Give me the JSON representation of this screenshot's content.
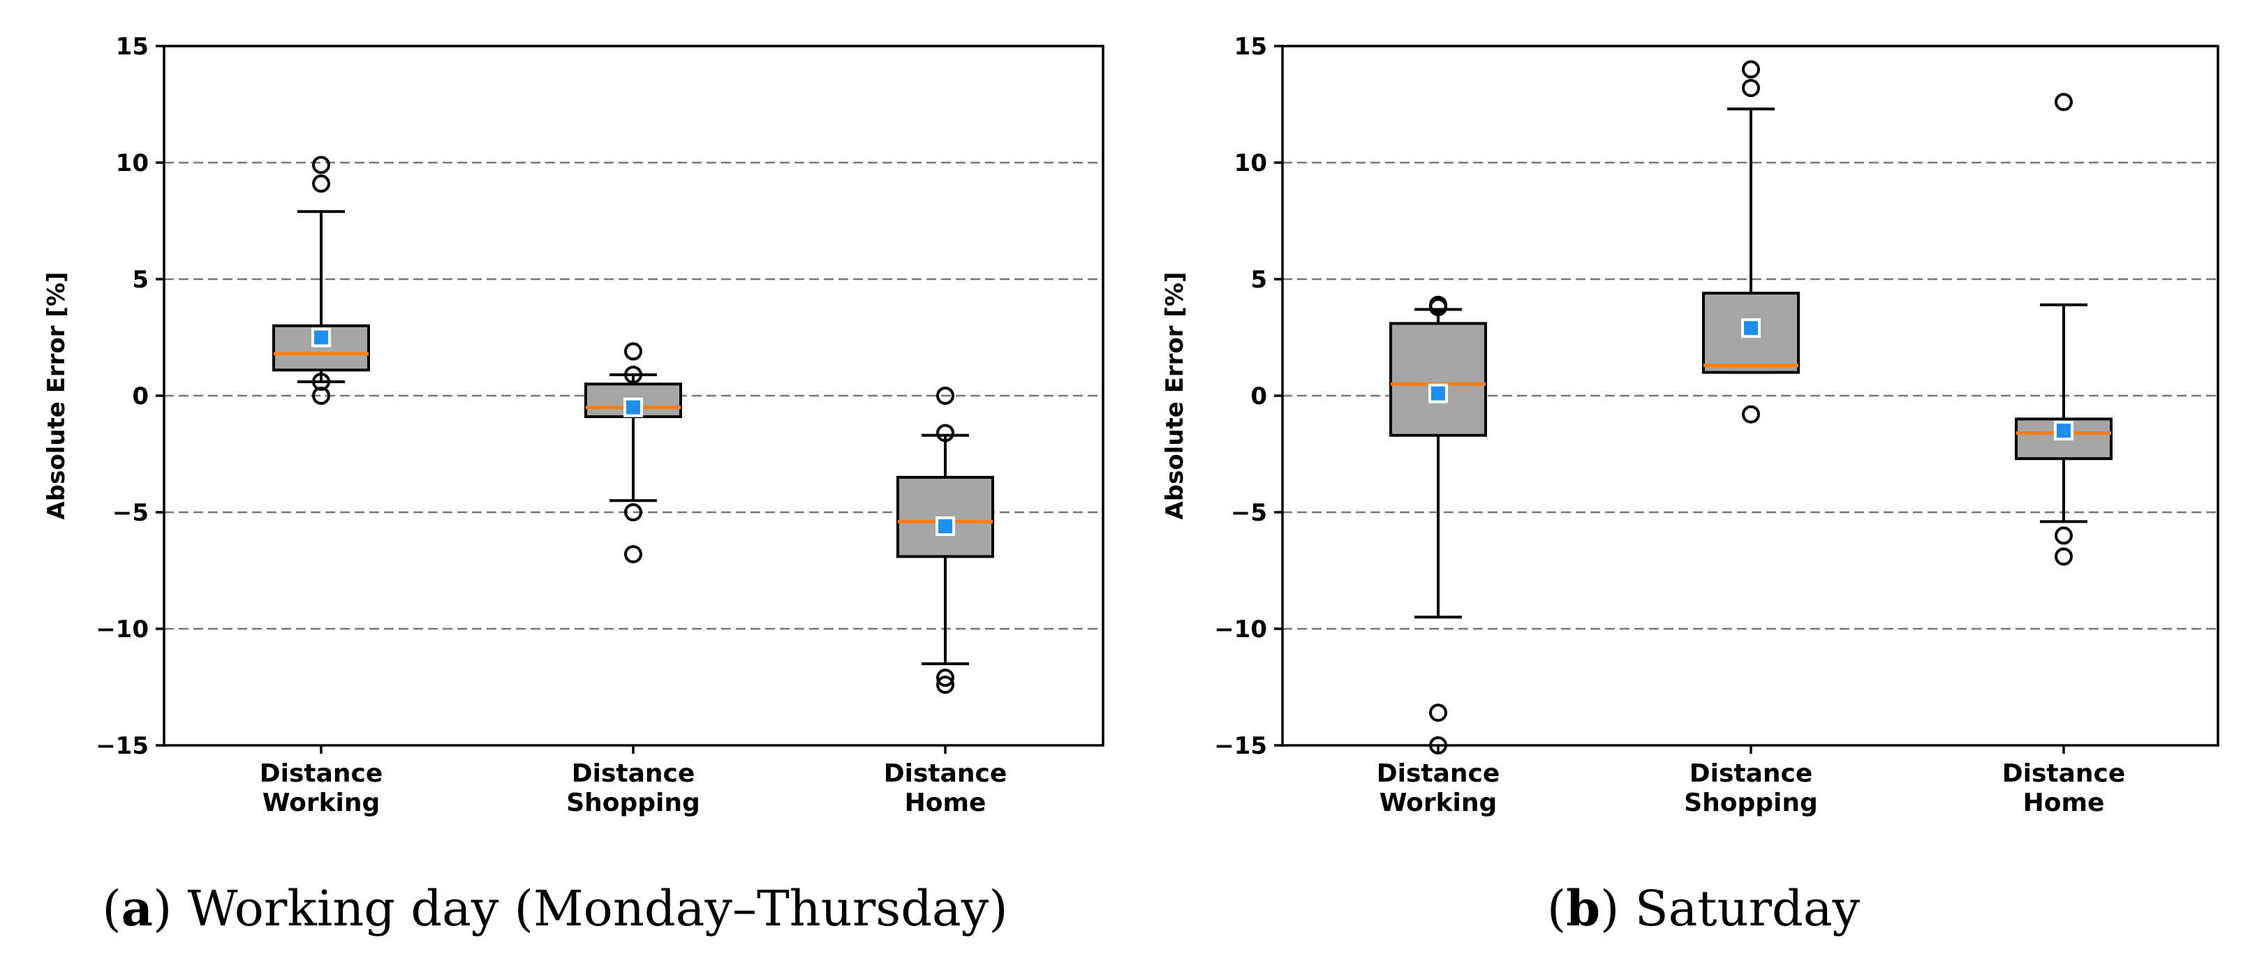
{
  "chart_data": [
    {
      "type": "box",
      "panel": "a",
      "caption_letter": "a",
      "caption_text": "Working day (Monday–Thursday)",
      "ylabel": "Absolute Error [%]",
      "ylim": [
        -15,
        15
      ],
      "yticks": [
        -15,
        -10,
        -5,
        0,
        5,
        10,
        15
      ],
      "ytick_labels": [
        "−15",
        "−10",
        "−5",
        "0",
        "5",
        "10",
        "15"
      ],
      "grid": "horizontal-dashed",
      "categories": [
        {
          "line1": "Distance",
          "line2": "Working"
        },
        {
          "line1": "Distance",
          "line2": "Shopping"
        },
        {
          "line1": "Distance",
          "line2": "Home"
        }
      ],
      "boxes": [
        {
          "whislo": 0.6,
          "q1": 1.1,
          "med": 1.8,
          "q3": 3.0,
          "whishi": 7.9,
          "mean": 2.5,
          "fliers": [
            9.9,
            9.1,
            0.6,
            0.0
          ]
        },
        {
          "whislo": -4.5,
          "q1": -0.9,
          "med": -0.5,
          "q3": 0.5,
          "whishi": 0.9,
          "mean": -0.5,
          "fliers": [
            1.9,
            0.9,
            -5.0,
            -6.8
          ]
        },
        {
          "whislo": -11.5,
          "q1": -6.9,
          "med": -5.4,
          "q3": -3.5,
          "whishi": -1.7,
          "mean": -5.6,
          "fliers": [
            0.0,
            -1.6,
            -12.1,
            -12.4
          ]
        }
      ]
    },
    {
      "type": "box",
      "panel": "b",
      "caption_letter": "b",
      "caption_text": "Saturday",
      "ylabel": "Absolute Error [%]",
      "ylim": [
        -15,
        15
      ],
      "yticks": [
        -15,
        -10,
        -5,
        0,
        5,
        10,
        15
      ],
      "ytick_labels": [
        "−15",
        "−10",
        "−5",
        "0",
        "5",
        "10",
        "15"
      ],
      "grid": "horizontal-dashed",
      "categories": [
        {
          "line1": "Distance",
          "line2": "Working"
        },
        {
          "line1": "Distance",
          "line2": "Shopping"
        },
        {
          "line1": "Distance",
          "line2": "Home"
        }
      ],
      "boxes": [
        {
          "whislo": -9.5,
          "q1": -1.7,
          "med": 0.5,
          "q3": 3.1,
          "whishi": 3.7,
          "mean": 0.1,
          "fliers": [
            3.8,
            3.9,
            -13.6,
            -15.0
          ]
        },
        {
          "whislo": 1.0,
          "q1": 1.0,
          "med": 1.3,
          "q3": 4.4,
          "whishi": 12.3,
          "mean": 2.9,
          "fliers": [
            14.0,
            13.2,
            -0.8
          ]
        },
        {
          "whislo": -5.4,
          "q1": -2.7,
          "med": -1.6,
          "q3": -1.0,
          "whishi": 3.9,
          "mean": -1.5,
          "fliers": [
            12.6,
            -6.0,
            -6.9
          ]
        }
      ]
    }
  ]
}
